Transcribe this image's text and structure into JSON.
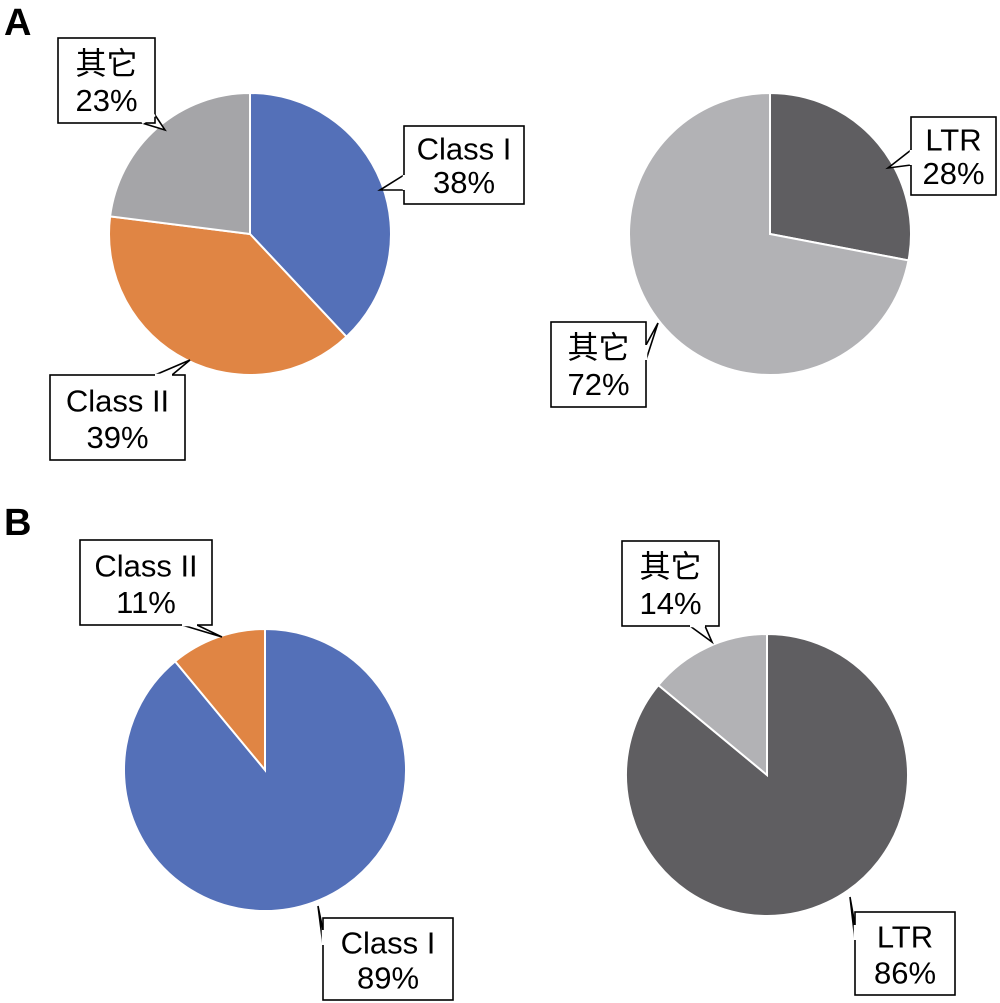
{
  "panels": [
    {
      "letter": "A"
    },
    {
      "letter": "B"
    }
  ],
  "chart_data": [
    {
      "type": "pie",
      "panel": "A",
      "slices": [
        {
          "label": "Class I",
          "value": 38,
          "value_label": "38%",
          "color": "#5470b8"
        },
        {
          "label": "Class II",
          "value": 39,
          "value_label": "39%",
          "color": "#e08544"
        },
        {
          "label": "其它",
          "value": 23,
          "value_label": "23%",
          "color": "#a5a5a8"
        }
      ]
    },
    {
      "type": "pie",
      "panel": "A",
      "slices": [
        {
          "label": "LTR",
          "value": 28,
          "value_label": "28%",
          "color": "#5f5e61"
        },
        {
          "label": "其它",
          "value": 72,
          "value_label": "72%",
          "color": "#b2b2b5"
        }
      ]
    },
    {
      "type": "pie",
      "panel": "B",
      "slices": [
        {
          "label": "Class I",
          "value": 89,
          "value_label": "89%",
          "color": "#5470b8"
        },
        {
          "label": "Class II",
          "value": 11,
          "value_label": "11%",
          "color": "#e08544"
        }
      ]
    },
    {
      "type": "pie",
      "panel": "B",
      "slices": [
        {
          "label": "LTR",
          "value": 86,
          "value_label": "86%",
          "color": "#5f5e61"
        },
        {
          "label": "其它",
          "value": 14,
          "value_label": "14%",
          "color": "#b2b2b5"
        }
      ]
    }
  ]
}
